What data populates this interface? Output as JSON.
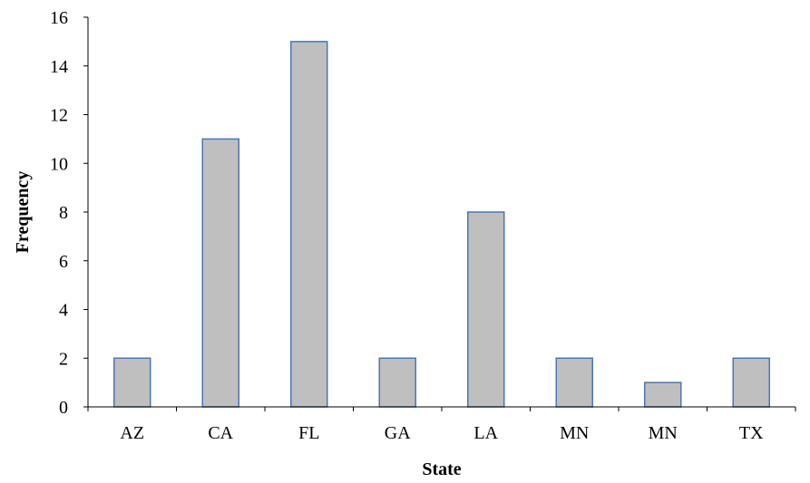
{
  "chart_data": {
    "type": "bar",
    "title": "",
    "xlabel": "State",
    "ylabel": "Frequency",
    "categories": [
      "AZ",
      "CA",
      "FL",
      "GA",
      "LA",
      "MN",
      "MN",
      "TX"
    ],
    "values": [
      2,
      11,
      15,
      2,
      8,
      2,
      1,
      2
    ],
    "ylim": [
      0,
      16
    ],
    "yticks": [
      0,
      2,
      4,
      6,
      8,
      10,
      12,
      14,
      16
    ],
    "grid": false,
    "legend": "none",
    "colors": {
      "bar_fill": "#bfbfbf",
      "bar_stroke": "#4a76b8",
      "axis": "#000000"
    }
  }
}
